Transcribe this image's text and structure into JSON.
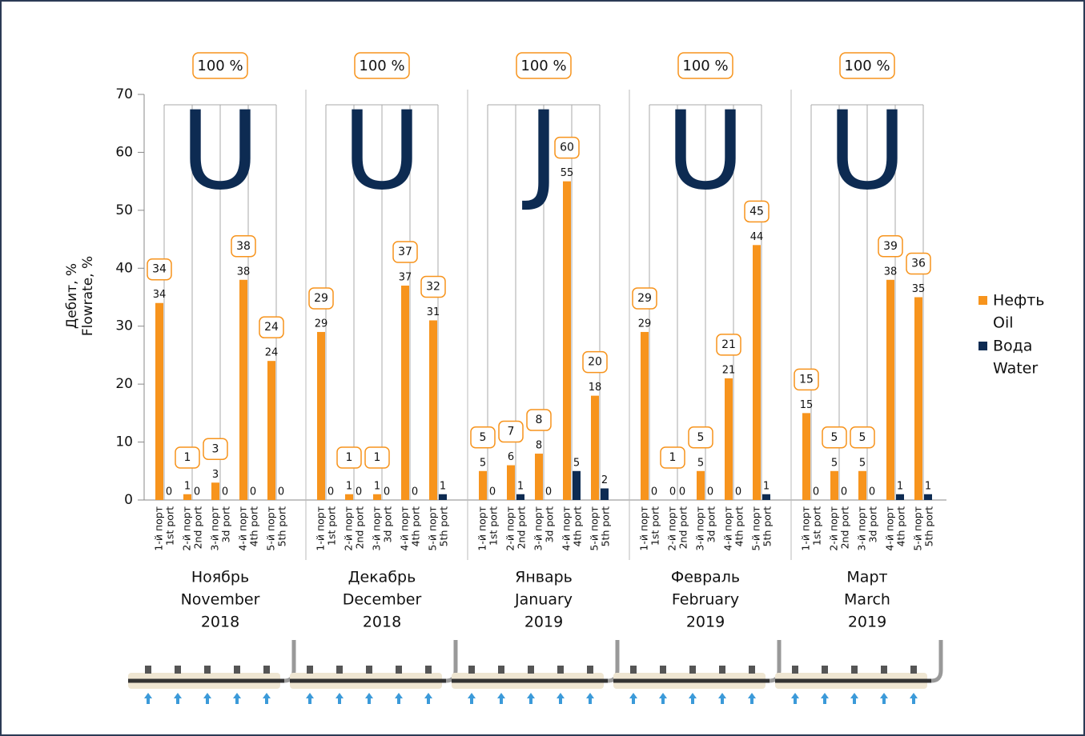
{
  "chart_data": {
    "type": "bar",
    "y_label": [
      "Дебит, %",
      "Flowrate, %"
    ],
    "ylim": [
      0,
      70
    ],
    "yticks": [
      0,
      10,
      20,
      30,
      40,
      50,
      60,
      70
    ],
    "legend": "right",
    "months": [
      [
        "Ноябрь",
        "November",
        "2018"
      ],
      [
        "Декабрь",
        "December",
        "2018"
      ],
      [
        "Январь",
        "January",
        "2019"
      ],
      [
        "Февраль",
        "February",
        "2019"
      ],
      [
        "Март",
        "March",
        "2019"
      ]
    ],
    "group_totals": [
      "100 %",
      "100 %",
      "100 %",
      "100 %",
      "100 %"
    ],
    "profiles": [
      "U",
      "U",
      "J",
      "U",
      "U"
    ],
    "categories": [
      "1-й порт",
      "2-й порт",
      "3-й порт",
      "4-й порт",
      "5-й порт",
      "1-й порт",
      "2-й порт",
      "3-й порт",
      "4-й порт",
      "5-й порт",
      "1-й порт",
      "2-й порт",
      "3-й порт",
      "4-й порт",
      "5-й порт",
      "1-й порт",
      "2-й порт",
      "3-й порт",
      "4-й порт",
      "5-й порт",
      "1-й порт",
      "2-й порт",
      "3-й порт",
      "4-й порт",
      "5-й порт"
    ],
    "categories_en": [
      "1st port",
      "2nd port",
      "3d port",
      "4th port",
      "5th port",
      "1st port",
      "2nd port",
      "3d port",
      "4th port",
      "5th port",
      "1st port",
      "2nd port",
      "3d port",
      "4th port",
      "5th port",
      "1st port",
      "2nd port",
      "3d port",
      "4th port",
      "5th port",
      "1st port",
      "2nd port",
      "3d port",
      "4th port",
      "5th port"
    ],
    "port_totals": [
      34,
      1,
      3,
      38,
      24,
      29,
      1,
      1,
      37,
      32,
      5,
      7,
      8,
      60,
      20,
      29,
      1,
      5,
      21,
      45,
      15,
      5,
      5,
      39,
      36
    ],
    "series": [
      {
        "name": "Нефть",
        "name_en": "Oil",
        "color": "#f7941d",
        "values": [
          34,
          1,
          3,
          38,
          24,
          29,
          1,
          1,
          37,
          31,
          5,
          6,
          8,
          55,
          18,
          29,
          0,
          5,
          21,
          44,
          15,
          5,
          5,
          38,
          35
        ]
      },
      {
        "name": "Вода",
        "name_en": "Water",
        "color": "#0d2b52",
        "values": [
          0,
          0,
          0,
          0,
          0,
          0,
          0,
          0,
          0,
          1,
          0,
          1,
          0,
          5,
          2,
          0,
          0,
          0,
          0,
          1,
          0,
          0,
          0,
          1,
          1
        ]
      }
    ]
  }
}
